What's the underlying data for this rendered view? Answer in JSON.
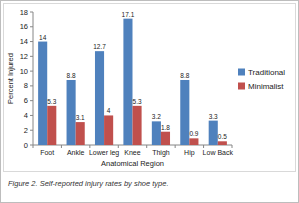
{
  "chart_data": {
    "type": "bar",
    "title": "Figure 2. Self-reported injury rates by shoe type.",
    "x_label": "Anatomical Region",
    "y_label": "Percent Injured",
    "categories": [
      "Foot",
      "Ankle",
      "Lower leg",
      "Knee",
      "Thigh",
      "Hip",
      "Low Back"
    ],
    "series": [
      {
        "name": "Traditional",
        "color": "#4f81bd",
        "values": [
          14,
          8.8,
          12.7,
          17.1,
          3.2,
          8.8,
          3.3
        ]
      },
      {
        "name": "Minimalist",
        "color": "#c0504d",
        "values": [
          5.3,
          3.1,
          4,
          5.3,
          1.8,
          0.9,
          0.5
        ]
      }
    ],
    "ylim": [
      0,
      18
    ],
    "yticks": [
      0,
      2,
      4,
      6,
      8,
      10,
      12,
      14,
      16,
      18
    ],
    "grid": false,
    "legend": "right",
    "data_labels": true
  }
}
